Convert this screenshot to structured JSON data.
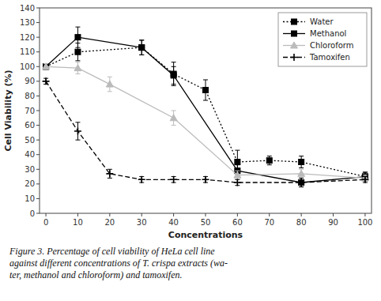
{
  "chart_data": {
    "type": "line",
    "xlabel": "Concentrations",
    "ylabel": "Cell Viability (%)",
    "caption": "Figure 3.  Percentage of cell viability of HeLa cell line\nagainst different concentrations of T. crispa extracts (wa-\nter, methanol and chloroform) and tamoxifen.",
    "xlim": [
      -2,
      102
    ],
    "ylim": [
      0,
      140
    ],
    "xticks": [
      0,
      10,
      20,
      30,
      40,
      50,
      60,
      70,
      80,
      90,
      100
    ],
    "yticks": [
      0,
      10,
      20,
      30,
      40,
      50,
      60,
      70,
      80,
      90,
      100,
      110,
      120,
      130,
      140
    ],
    "grid": false,
    "legend": "upper right",
    "series": [
      {
        "name": "Water",
        "color": "black",
        "marker": "square",
        "line_style": "dotted",
        "x": [
          0,
          10,
          30,
          40,
          50,
          60,
          70,
          80,
          100
        ],
        "values": [
          100,
          110,
          113,
          95,
          84,
          35,
          36,
          35,
          25
        ],
        "errors": [
          2,
          6,
          5,
          8,
          7,
          8,
          3,
          4,
          3
        ]
      },
      {
        "name": "Methanol",
        "color": "black",
        "marker": "square",
        "line_style": "solid",
        "x": [
          0,
          10,
          30,
          40,
          60,
          80,
          100
        ],
        "values": [
          100,
          120,
          113,
          94,
          29,
          21,
          25
        ],
        "errors": [
          2,
          7,
          5,
          6,
          4,
          3,
          3
        ]
      },
      {
        "name": "Chloroform",
        "color": "#bbbbbb",
        "marker": "triangle",
        "line_style": "solid",
        "x": [
          0,
          10,
          20,
          40,
          60,
          80,
          100
        ],
        "values": [
          100,
          99,
          88,
          65,
          26,
          27,
          24
        ],
        "errors": [
          2,
          4,
          5,
          5,
          3,
          3,
          2
        ]
      },
      {
        "name": "Tamoxifen",
        "color": "black",
        "marker": "plus",
        "line_style": "dashed",
        "x": [
          0,
          10,
          20,
          30,
          40,
          50,
          60,
          80,
          100
        ],
        "values": [
          90,
          56,
          27,
          23,
          23,
          23,
          21,
          21,
          23
        ],
        "errors": [
          2,
          6,
          3,
          2,
          2,
          2,
          2,
          3,
          2
        ]
      }
    ]
  }
}
